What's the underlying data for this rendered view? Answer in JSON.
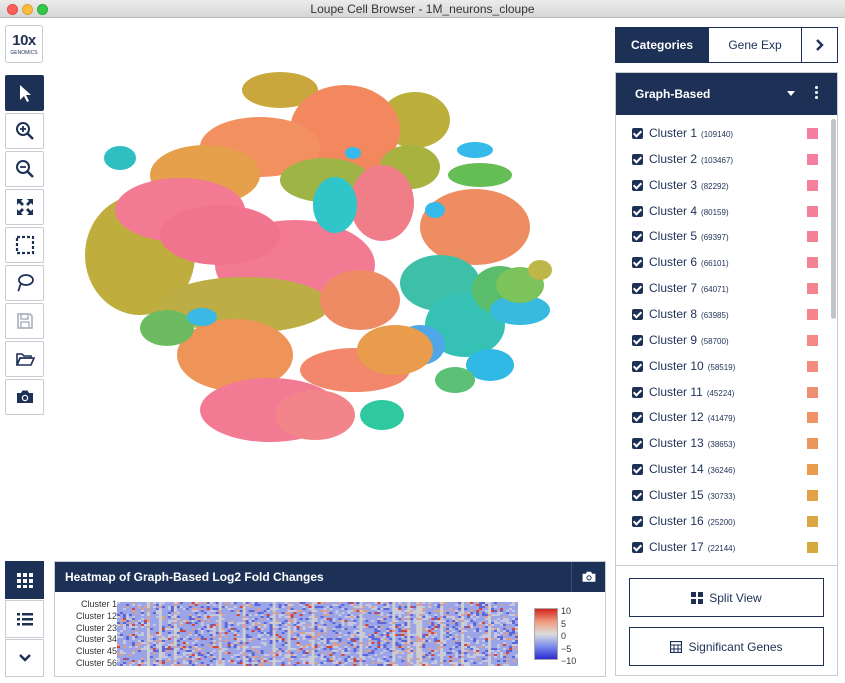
{
  "window": {
    "title": "Loupe Cell Browser - 1M_neurons_cloupe"
  },
  "logo": {
    "main": "10x",
    "sub": "GENOMICS"
  },
  "toolbar": {
    "tools": [
      {
        "name": "select-tool",
        "icon": "cursor-arrow-icon",
        "active": true
      },
      {
        "name": "zoom-in-tool",
        "icon": "zoom-in-icon"
      },
      {
        "name": "zoom-out-tool",
        "icon": "zoom-out-icon"
      },
      {
        "name": "fit-view-tool",
        "icon": "expand-arrows-icon"
      },
      {
        "name": "rectangle-select-tool",
        "icon": "dashed-rectangle-icon"
      },
      {
        "name": "lasso-select-tool",
        "icon": "lasso-icon"
      },
      {
        "name": "save-tool",
        "icon": "floppy-disk-icon",
        "disabled": true
      },
      {
        "name": "open-tool",
        "icon": "folder-open-icon"
      },
      {
        "name": "screenshot-tool",
        "icon": "camera-icon"
      }
    ],
    "bottom_tools": [
      {
        "name": "heatmap-view-button",
        "icon": "grid-icon",
        "active": true
      },
      {
        "name": "list-view-button",
        "icon": "list-icon"
      },
      {
        "name": "collapse-button",
        "icon": "chevron-down-icon"
      }
    ]
  },
  "heatmap": {
    "title": "Heatmap of Graph-Based Log2 Fold Changes",
    "row_labels": [
      "Cluster 1",
      "Cluster 12",
      "Cluster 23",
      "Cluster 34",
      "Cluster 45",
      "Cluster 56"
    ],
    "scale_ticks": [
      "10",
      "5",
      "0",
      "−5",
      "−10"
    ]
  },
  "tabs": {
    "categories": "Categories",
    "gene_exp": "Gene Exp",
    "next": "›"
  },
  "category_panel": {
    "title": "Graph-Based",
    "clusters": [
      {
        "name": "Cluster 1",
        "count": "(109140)",
        "color": "#f47fa0"
      },
      {
        "name": "Cluster 2",
        "count": "(103467)",
        "color": "#f47fa0"
      },
      {
        "name": "Cluster 3",
        "count": "(82292)",
        "color": "#f4809c"
      },
      {
        "name": "Cluster 4",
        "count": "(80159)",
        "color": "#f4819a"
      },
      {
        "name": "Cluster 5",
        "count": "(69397)",
        "color": "#f48296"
      },
      {
        "name": "Cluster 6",
        "count": "(66101)",
        "color": "#f48392"
      },
      {
        "name": "Cluster 7",
        "count": "(64071)",
        "color": "#f4858e"
      },
      {
        "name": "Cluster 8",
        "count": "(63985)",
        "color": "#f4868a"
      },
      {
        "name": "Cluster 9",
        "count": "(58700)",
        "color": "#f38885"
      },
      {
        "name": "Cluster 10",
        "count": "(58519)",
        "color": "#f38b7f"
      },
      {
        "name": "Cluster 11",
        "count": "(45224)",
        "color": "#f08e72"
      },
      {
        "name": "Cluster 12",
        "count": "(41479)",
        "color": "#ef9266"
      },
      {
        "name": "Cluster 13",
        "count": "(38653)",
        "color": "#ec975a"
      },
      {
        "name": "Cluster 14",
        "count": "(36246)",
        "color": "#e99c4e"
      },
      {
        "name": "Cluster 15",
        "count": "(30733)",
        "color": "#e3a247"
      },
      {
        "name": "Cluster 16",
        "count": "(25200)",
        "color": "#dba744"
      },
      {
        "name": "Cluster 17",
        "count": "(22144)",
        "color": "#d6ab3e"
      }
    ]
  },
  "buttons": {
    "split_view": "Split View",
    "significant_genes": "Significant Genes"
  }
}
